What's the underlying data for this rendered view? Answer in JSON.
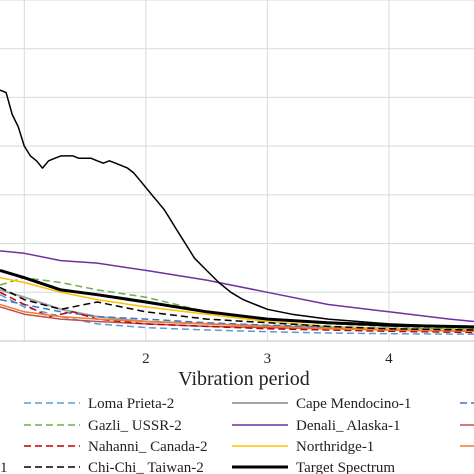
{
  "chart_data": {
    "type": "line",
    "title": "",
    "xlabel": "Vibration period",
    "ylabel": "",
    "xlim": [
      0.8,
      4.7
    ],
    "ylim": [
      0,
      1.4
    ],
    "xticks": [
      "2",
      "3",
      "4"
    ],
    "grid": {
      "vertical": true,
      "horizontal": true
    },
    "legend": {
      "position": "bottom",
      "columns": 3
    },
    "series": [
      {
        "name": "Loma Prieta-2",
        "color": "#5b9bd5",
        "dash": "dashed",
        "width": 1.5,
        "x": [
          0.8,
          1.0,
          1.3,
          1.6,
          2.0,
          2.5,
          3.0,
          3.5,
          4.0,
          4.7
        ],
        "y": [
          0.19,
          0.14,
          0.1,
          0.07,
          0.055,
          0.045,
          0.038,
          0.033,
          0.03,
          0.028
        ]
      },
      {
        "name": "Cape Mendocino-1",
        "color": "#a5a5a5",
        "dash": "solid",
        "width": 2,
        "x": [
          0.8,
          1.0,
          1.3,
          1.6,
          2.0,
          2.5,
          3.0,
          3.5,
          4.0,
          4.7
        ],
        "y": [
          0.21,
          0.18,
          0.13,
          0.1,
          0.08,
          0.07,
          0.062,
          0.055,
          0.05,
          0.045
        ]
      },
      {
        "name": "",
        "color": "#4472c4",
        "dash": "dashed",
        "width": 1.5,
        "x": [
          0.8,
          1.0,
          1.3,
          1.6,
          2.0,
          2.5,
          3.0,
          3.5,
          4.0,
          4.7
        ],
        "y": [
          0.17,
          0.15,
          0.12,
          0.1,
          0.09,
          0.075,
          0.065,
          0.058,
          0.052,
          0.048
        ]
      },
      {
        "name": "Gazli_ USSR-2",
        "color": "#70ad47",
        "dash": "dashed",
        "width": 1.5,
        "x": [
          0.8,
          1.0,
          1.3,
          1.6,
          2.0,
          2.5,
          3.0,
          3.5,
          4.0,
          4.7
        ],
        "y": [
          0.23,
          0.26,
          0.24,
          0.21,
          0.18,
          0.12,
          0.09,
          0.07,
          0.06,
          0.05
        ]
      },
      {
        "name": "Denali_ Alaska-1",
        "color": "#7030a0",
        "dash": "solid",
        "width": 1.5,
        "x": [
          0.8,
          1.0,
          1.3,
          1.6,
          2.0,
          2.5,
          3.0,
          3.5,
          4.0,
          4.5,
          4.7
        ],
        "y": [
          0.37,
          0.36,
          0.33,
          0.32,
          0.29,
          0.25,
          0.2,
          0.15,
          0.12,
          0.09,
          0.08
        ]
      },
      {
        "name": "",
        "color": "#c0504d",
        "dash": "solid",
        "width": 1.5,
        "x": [
          0.8,
          1.0,
          1.3,
          1.6,
          2.0,
          2.5,
          3.0,
          3.5,
          4.0,
          4.7
        ],
        "y": [
          0.14,
          0.11,
          0.09,
          0.08,
          0.07,
          0.06,
          0.055,
          0.05,
          0.045,
          0.04
        ]
      },
      {
        "name": "Nahanni_ Canada-2",
        "color": "#c00000",
        "dash": "dashed",
        "width": 1.5,
        "x": [
          0.8,
          1.0,
          1.2,
          1.4,
          1.6,
          2.0,
          2.5,
          3.0,
          3.5,
          4.0,
          4.7
        ],
        "y": [
          0.2,
          0.15,
          0.1,
          0.12,
          0.09,
          0.07,
          0.06,
          0.05,
          0.045,
          0.04,
          0.035
        ]
      },
      {
        "name": "Northridge-1",
        "color": "#ffc000",
        "dash": "solid",
        "width": 1.5,
        "x": [
          0.8,
          1.0,
          1.3,
          1.6,
          2.0,
          2.5,
          3.0,
          3.5,
          4.0,
          4.7
        ],
        "y": [
          0.26,
          0.24,
          0.2,
          0.17,
          0.14,
          0.11,
          0.08,
          0.06,
          0.05,
          0.045
        ]
      },
      {
        "name": "",
        "color": "#ed7d31",
        "dash": "solid",
        "width": 1.5,
        "x": [
          0.8,
          1.0,
          1.3,
          1.6,
          2.0,
          2.5,
          3.0,
          3.5,
          4.0,
          4.7
        ],
        "y": [
          0.15,
          0.12,
          0.1,
          0.09,
          0.08,
          0.07,
          0.06,
          0.05,
          0.045,
          0.04
        ]
      },
      {
        "name": "Chi-Chi_ Taiwan-2",
        "color": "#000000",
        "dash": "dashed",
        "width": 1.5,
        "x": [
          0.8,
          1.0,
          1.3,
          1.6,
          2.0,
          2.5,
          3.0,
          3.5,
          4.0,
          4.7
        ],
        "y": [
          0.22,
          0.17,
          0.13,
          0.16,
          0.12,
          0.09,
          0.075,
          0.06,
          0.05,
          0.045
        ]
      },
      {
        "name": "Target Spectrum",
        "color": "#000000",
        "dash": "solid",
        "width": 3,
        "x": [
          0.8,
          1.0,
          1.3,
          1.6,
          2.0,
          2.5,
          3.0,
          3.5,
          4.0,
          4.7
        ],
        "y": [
          0.29,
          0.26,
          0.21,
          0.19,
          0.16,
          0.12,
          0.09,
          0.075,
          0.065,
          0.058
        ]
      },
      {
        "name": "",
        "color": "#000000",
        "dash": "solid",
        "width": 1.5,
        "x": [
          0.8,
          0.85,
          0.9,
          0.95,
          1.0,
          1.05,
          1.1,
          1.15,
          1.2,
          1.25,
          1.3,
          1.35,
          1.4,
          1.45,
          1.5,
          1.55,
          1.6,
          1.65,
          1.7,
          1.75,
          1.8,
          1.85,
          1.9,
          1.95,
          2.0,
          2.05,
          2.1,
          2.15,
          2.2,
          2.25,
          2.3,
          2.35,
          2.4,
          2.5,
          2.6,
          2.7,
          2.8,
          2.9,
          3.0,
          3.2,
          3.5,
          4.0,
          4.5,
          4.7
        ],
        "y": [
          1.03,
          1.02,
          0.93,
          0.88,
          0.8,
          0.76,
          0.74,
          0.71,
          0.74,
          0.75,
          0.76,
          0.76,
          0.76,
          0.75,
          0.75,
          0.75,
          0.74,
          0.73,
          0.74,
          0.73,
          0.72,
          0.71,
          0.69,
          0.66,
          0.63,
          0.6,
          0.57,
          0.54,
          0.5,
          0.46,
          0.42,
          0.38,
          0.34,
          0.29,
          0.24,
          0.2,
          0.17,
          0.15,
          0.13,
          0.11,
          0.09,
          0.07,
          0.06,
          0.055
        ]
      }
    ],
    "legend_entries": [
      {
        "series": 0,
        "row": 0,
        "col": 0
      },
      {
        "series": 1,
        "row": 0,
        "col": 1
      },
      {
        "series": 2,
        "row": 0,
        "col": 2
      },
      {
        "series": 3,
        "row": 1,
        "col": 0
      },
      {
        "series": 4,
        "row": 1,
        "col": 1
      },
      {
        "series": 5,
        "row": 1,
        "col": 2
      },
      {
        "series": 6,
        "row": 2,
        "col": 0
      },
      {
        "series": 7,
        "row": 2,
        "col": 1
      },
      {
        "series": 8,
        "row": 2,
        "col": 2
      },
      {
        "series": 9,
        "row": 3,
        "col": 0
      },
      {
        "series": 10,
        "row": 3,
        "col": 1
      },
      {
        "series": 11,
        "row": 3,
        "col": -1,
        "label": "1"
      }
    ]
  }
}
